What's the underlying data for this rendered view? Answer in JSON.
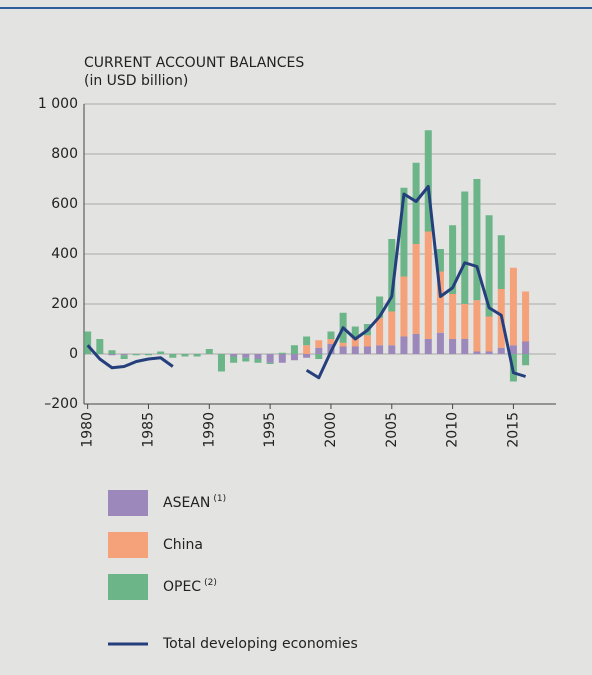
{
  "chart_data": {
    "type": "bar",
    "title": "CURRENT ACCOUNT BALANCES",
    "subtitle": "(in USD billion)",
    "x": [
      1980,
      1981,
      1982,
      1983,
      1984,
      1985,
      1986,
      1987,
      1988,
      1989,
      1990,
      1991,
      1992,
      1993,
      1994,
      1995,
      1996,
      1997,
      1998,
      1999,
      2000,
      2001,
      2002,
      2003,
      2004,
      2005,
      2006,
      2007,
      2008,
      2009,
      2010,
      2011,
      2012,
      2013,
      2014,
      2015,
      2016
    ],
    "series": [
      {
        "name": "ASEAN",
        "footnote": "(1)",
        "color": "#9c88bb",
        "kind": "bar",
        "values": [
          0,
          0,
          -5,
          -5,
          0,
          0,
          0,
          0,
          0,
          0,
          0,
          0,
          -10,
          -15,
          -20,
          -35,
          -35,
          -25,
          -15,
          25,
          40,
          30,
          30,
          30,
          35,
          35,
          70,
          80,
          60,
          85,
          60,
          60,
          10,
          10,
          25,
          35,
          50
        ]
      },
      {
        "name": "China",
        "color": "#f5a17a",
        "kind": "bar",
        "values": [
          0,
          0,
          0,
          0,
          0,
          0,
          0,
          0,
          0,
          0,
          0,
          0,
          0,
          0,
          0,
          0,
          0,
          0,
          35,
          30,
          20,
          15,
          35,
          45,
          110,
          135,
          240,
          360,
          430,
          245,
          180,
          140,
          205,
          140,
          235,
          310,
          200
        ]
      },
      {
        "name": "OPEC",
        "footnote": "(2)",
        "color": "#6cb588",
        "kind": "bar",
        "values": [
          90,
          60,
          15,
          -15,
          -5,
          -5,
          10,
          -15,
          -10,
          -10,
          20,
          -70,
          -25,
          -15,
          -15,
          -5,
          5,
          35,
          35,
          -20,
          30,
          120,
          45,
          45,
          85,
          290,
          355,
          325,
          405,
          90,
          275,
          450,
          485,
          405,
          215,
          -110,
          -45
        ]
      },
      {
        "name": "Total developing economies",
        "color": "#243f7c",
        "kind": "line",
        "values": [
          35,
          -20,
          -55,
          -50,
          -30,
          -20,
          -15,
          -50,
          null,
          null,
          null,
          null,
          null,
          null,
          null,
          null,
          null,
          null,
          -65,
          -95,
          10,
          105,
          60,
          95,
          150,
          230,
          640,
          610,
          670,
          230,
          265,
          365,
          350,
          185,
          155,
          -75,
          -90
        ]
      }
    ],
    "xlim": [
      1979.7,
      2018.5
    ],
    "xticks": [
      1980,
      1985,
      1990,
      1995,
      2000,
      2005,
      2010,
      2015
    ],
    "ylim": [
      -200,
      1000
    ],
    "yticks": [
      {
        "value": -200,
        "label": "–200"
      },
      0,
      200,
      400,
      600,
      800,
      {
        "value": 1000,
        "label": "1 000"
      }
    ],
    "grid": true
  }
}
